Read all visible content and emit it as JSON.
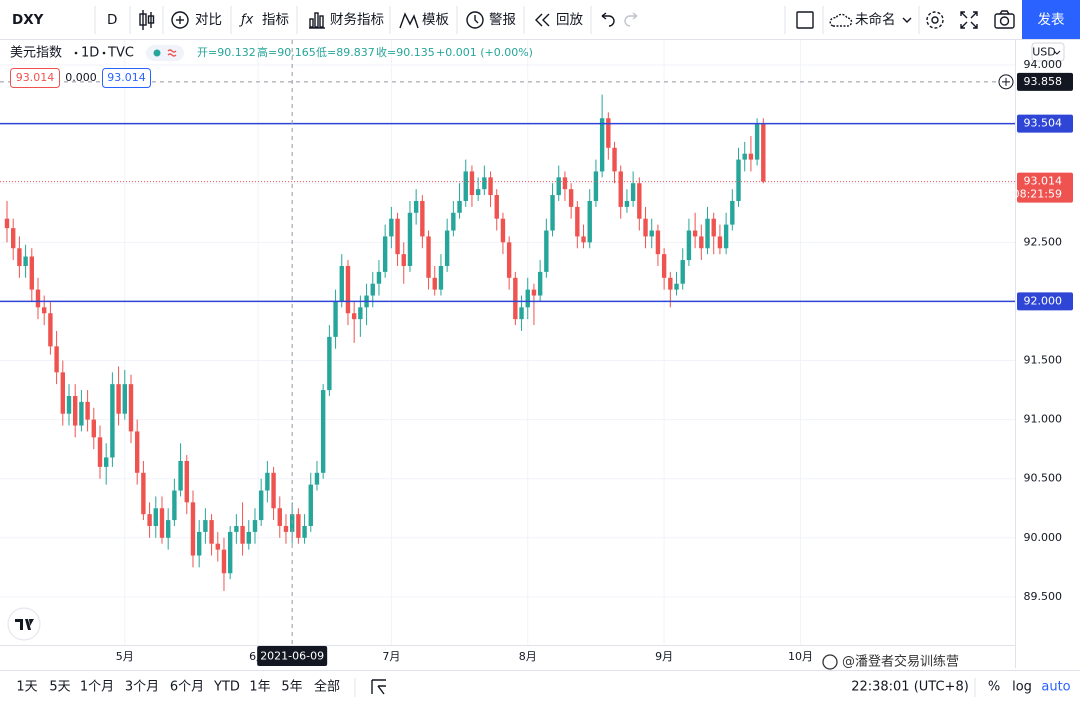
{
  "toolbar": {
    "symbol": "DXY",
    "interval": "D",
    "compare": "对比",
    "indicators": "指标",
    "financials": "财务指标",
    "templates": "模板",
    "alert": "警报",
    "replay": "回放",
    "layout_name": "未命名",
    "publish": "发表"
  },
  "legend": {
    "symbol": "美元指数",
    "interval": "1D",
    "exchange": "TVC",
    "open": "开=90.132",
    "high": "高=90.165",
    "low": "低=89.837",
    "close": "收=90.135",
    "change": "+0.001 (+0.00%)",
    "chips": [
      "93.014",
      "0.000",
      "93.014"
    ]
  },
  "currency": "USD",
  "chart_data": {
    "type": "candlestick",
    "open": [
      92.7,
      92.62,
      92.45,
      92.3,
      92.38,
      92.1,
      91.95,
      91.9,
      91.62,
      91.4,
      91.05,
      91.2,
      90.95,
      91.15,
      91.0,
      90.85,
      90.6,
      90.68,
      91.3,
      91.05,
      91.3,
      90.9,
      90.55,
      90.2,
      90.1,
      90.25,
      90.0,
      90.15,
      90.4,
      90.65,
      90.3,
      89.85,
      90.05,
      90.15,
      89.95,
      89.9,
      89.7,
      90.05,
      90.1,
      89.95,
      90.05,
      90.15,
      90.4,
      90.55,
      90.25,
      90.1,
      90.05,
      90.2,
      90.0,
      90.1,
      90.45,
      90.55,
      91.25,
      91.7,
      92.0,
      92.3,
      91.9,
      91.85,
      91.95,
      92.05,
      92.15,
      92.25,
      92.55,
      92.7,
      92.4,
      92.3,
      92.75,
      92.85,
      92.55,
      92.2,
      92.1,
      92.3,
      92.6,
      92.75,
      92.85,
      93.1,
      92.9,
      92.95,
      93.05,
      92.9,
      92.7,
      92.5,
      92.2,
      91.85,
      91.95,
      92.1,
      92.05,
      92.25,
      92.6,
      92.9,
      93.05,
      92.95,
      92.8,
      92.55,
      92.5,
      92.85,
      93.1,
      93.55,
      93.3,
      93.1,
      92.8,
      92.85,
      93.0,
      92.7,
      92.55,
      92.6,
      92.4,
      92.2,
      92.1,
      92.15,
      92.35,
      92.6,
      92.55,
      92.45,
      92.7,
      92.55,
      92.45,
      92.65,
      92.85,
      93.2,
      93.25,
      93.2,
      93.5
    ],
    "high": [
      92.85,
      92.7,
      92.55,
      92.48,
      92.45,
      92.2,
      92.05,
      92.0,
      91.75,
      91.5,
      91.3,
      91.3,
      91.25,
      91.25,
      91.1,
      90.95,
      90.8,
      91.4,
      91.45,
      91.42,
      91.38,
      91.0,
      90.65,
      90.3,
      90.35,
      90.35,
      90.25,
      90.5,
      90.8,
      90.7,
      90.4,
      90.15,
      90.25,
      90.2,
      90.05,
      90.0,
      90.1,
      90.2,
      90.3,
      90.15,
      90.25,
      90.5,
      90.65,
      90.6,
      90.35,
      90.2,
      90.3,
      90.25,
      90.2,
      90.55,
      90.65,
      91.3,
      91.8,
      92.1,
      92.4,
      92.35,
      92.0,
      92.05,
      92.15,
      92.25,
      92.35,
      92.65,
      92.8,
      92.75,
      92.5,
      92.85,
      92.95,
      92.9,
      92.6,
      92.3,
      92.4,
      92.7,
      92.85,
      93.0,
      93.2,
      93.15,
      93.05,
      93.15,
      93.1,
      92.95,
      92.75,
      92.55,
      92.25,
      92.05,
      92.2,
      92.15,
      92.35,
      92.7,
      93.0,
      93.15,
      93.1,
      93.0,
      92.85,
      92.65,
      92.95,
      93.2,
      93.75,
      93.6,
      93.35,
      93.15,
      92.95,
      93.1,
      93.05,
      92.8,
      92.7,
      92.65,
      92.45,
      92.25,
      92.25,
      92.45,
      92.7,
      92.75,
      92.65,
      92.8,
      92.75,
      92.65,
      92.75,
      92.95,
      93.3,
      93.35,
      93.4,
      93.55,
      93.55
    ],
    "low": [
      92.5,
      92.35,
      92.2,
      92.2,
      92.0,
      91.85,
      91.8,
      91.55,
      91.3,
      90.95,
      90.95,
      90.85,
      90.9,
      90.9,
      90.75,
      90.5,
      90.45,
      90.6,
      90.95,
      91.0,
      90.8,
      90.45,
      90.15,
      90.0,
      90.0,
      89.95,
      89.9,
      90.1,
      90.35,
      90.2,
      89.75,
      89.75,
      89.95,
      89.85,
      89.8,
      89.55,
      89.65,
      89.95,
      89.85,
      89.9,
      89.95,
      90.1,
      90.3,
      90.15,
      90.0,
      89.95,
      89.95,
      89.95,
      89.95,
      90.05,
      90.4,
      90.5,
      91.2,
      91.6,
      91.95,
      91.8,
      91.65,
      91.7,
      91.8,
      91.95,
      92.05,
      92.2,
      92.45,
      92.3,
      92.15,
      92.25,
      92.65,
      92.45,
      92.1,
      92.05,
      92.05,
      92.25,
      92.55,
      92.7,
      92.8,
      92.8,
      92.85,
      92.9,
      92.8,
      92.6,
      92.4,
      92.1,
      91.8,
      91.75,
      91.85,
      91.8,
      92.0,
      92.2,
      92.55,
      92.85,
      92.85,
      92.7,
      92.45,
      92.45,
      92.45,
      92.8,
      93.05,
      93.2,
      93.0,
      92.7,
      92.75,
      92.8,
      92.6,
      92.45,
      92.45,
      92.3,
      92.1,
      91.95,
      92.05,
      92.1,
      92.3,
      92.45,
      92.35,
      92.4,
      92.4,
      92.4,
      92.4,
      92.6,
      92.8,
      93.1,
      93.1,
      93.15,
      93.0
    ],
    "close": [
      92.62,
      92.45,
      92.3,
      92.38,
      92.1,
      91.95,
      91.9,
      91.62,
      91.4,
      91.05,
      91.2,
      90.95,
      91.15,
      91.0,
      90.85,
      90.6,
      90.68,
      91.3,
      91.05,
      91.3,
      90.9,
      90.55,
      90.2,
      90.1,
      90.25,
      90.0,
      90.15,
      90.4,
      90.65,
      90.3,
      89.85,
      90.05,
      90.15,
      89.95,
      89.9,
      89.7,
      90.05,
      90.1,
      89.95,
      90.05,
      90.15,
      90.4,
      90.55,
      90.25,
      90.1,
      90.05,
      90.2,
      90.0,
      90.1,
      90.45,
      90.55,
      91.25,
      91.7,
      92.0,
      92.3,
      91.9,
      91.85,
      91.95,
      92.05,
      92.15,
      92.25,
      92.55,
      92.7,
      92.4,
      92.3,
      92.75,
      92.85,
      92.55,
      92.2,
      92.1,
      92.3,
      92.6,
      92.75,
      92.85,
      93.1,
      92.9,
      92.95,
      93.05,
      92.9,
      92.7,
      92.5,
      92.2,
      91.85,
      91.95,
      92.1,
      92.05,
      92.25,
      92.6,
      92.9,
      93.05,
      92.95,
      92.8,
      92.55,
      92.5,
      92.85,
      93.1,
      93.55,
      93.3,
      93.1,
      92.8,
      92.85,
      93.0,
      92.7,
      92.55,
      92.6,
      92.4,
      92.2,
      92.1,
      92.15,
      92.35,
      92.6,
      92.55,
      92.45,
      92.7,
      92.55,
      92.45,
      92.65,
      92.85,
      93.2,
      93.25,
      93.2,
      93.5,
      93.014
    ],
    "up_color": "#26a69a",
    "down_color": "#ef5350",
    "xlim": [
      -1.13,
      162.6
    ],
    "xticks": [
      {
        "value": 19,
        "label": "5月"
      },
      {
        "value": 40.5,
        "label": "6月"
      },
      {
        "value": 62,
        "label": "7月"
      },
      {
        "value": 84,
        "label": "8月"
      },
      {
        "value": 106,
        "label": "9月"
      },
      {
        "value": 128,
        "label": "10月"
      }
    ],
    "ylim": [
      89.093,
      94.212
    ],
    "yticks": [
      {
        "value": 89.5,
        "label": "89.500"
      },
      {
        "value": 90,
        "label": "90.000"
      },
      {
        "value": 90.5,
        "label": "90.500"
      },
      {
        "value": 91,
        "label": "91.000"
      },
      {
        "value": 91.5,
        "label": "91.500"
      },
      {
        "value": 92,
        "label": "92.000"
      },
      {
        "value": 92.5,
        "label": "92.500"
      },
      {
        "value": 93,
        "label": "93.000"
      },
      {
        "value": 93.5,
        "label": "93.500"
      },
      {
        "value": 94,
        "label": "94.000"
      }
    ],
    "grid": true,
    "hlines": [
      {
        "value": 93.504,
        "label": "93.504",
        "color": "#2f45d6"
      },
      {
        "value": 92.0,
        "label": "92.000",
        "color": "#2f45d6"
      }
    ],
    "last_price": {
      "value": 93.014,
      "label": "93.014",
      "countdown": "08:21:59",
      "color": "#ef5350"
    },
    "crosshair": {
      "x": 46,
      "x_label": "2021-06-09",
      "y": 93.858,
      "y_label": "93.858"
    }
  },
  "bottom_bar": {
    "ranges": [
      "1天",
      "5天",
      "1个月",
      "3个月",
      "6个月",
      "YTD",
      "1年",
      "5年",
      "全部"
    ],
    "time": "22:38:01 (UTC+8)",
    "percent": "%",
    "log": "log",
    "auto": "auto"
  },
  "watermark": "@潘登者交易训练营"
}
